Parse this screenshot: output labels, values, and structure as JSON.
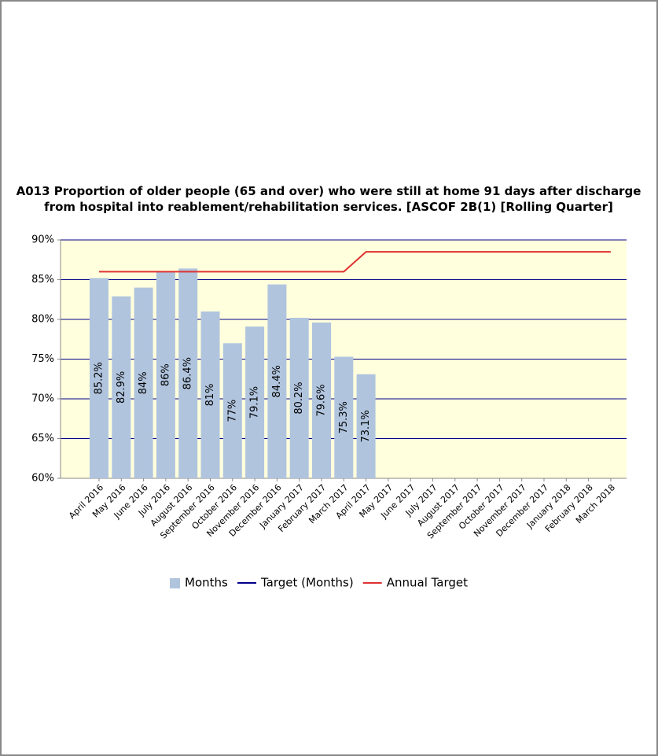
{
  "chart_data": {
    "type": "bar",
    "title": "A013 Proportion of older people (65 and over) who were still at home 91 days after discharge from hospital into reablement/rehabilitation services. [ASCOF 2B(1) [Rolling Quarter]",
    "categories": [
      "April 2016",
      "May 2016",
      "June 2016",
      "July 2016",
      "August 2016",
      "September 2016",
      "October 2016",
      "November 2016",
      "December 2016",
      "January 2017",
      "February 2017",
      "March 2017",
      "April 2017",
      "May 2017",
      "June 2017",
      "July 2017",
      "August 2017",
      "September 2017",
      "October 2017",
      "November 2017",
      "December 2017",
      "January 2018",
      "February 2018",
      "March 2018"
    ],
    "series": [
      {
        "name": "Months",
        "type": "bar",
        "color": "#b0c4de",
        "values": [
          85.2,
          82.9,
          84,
          86,
          86.4,
          81,
          77,
          79.1,
          84.4,
          80.2,
          79.6,
          75.3,
          73.1,
          null,
          null,
          null,
          null,
          null,
          null,
          null,
          null,
          null,
          null,
          null
        ],
        "value_labels": [
          "85.2%",
          "82.9%",
          "84%",
          "86%",
          "86.4%",
          "81%",
          "77%",
          "79.1%",
          "84.4%",
          "80.2%",
          "79.6%",
          "75.3%",
          "73.1%",
          null,
          null,
          null,
          null,
          null,
          null,
          null,
          null,
          null,
          null,
          null
        ]
      },
      {
        "name": "Target (Months)",
        "type": "line",
        "color": "#00008b",
        "values": [
          null,
          null,
          null,
          null,
          null,
          null,
          null,
          null,
          null,
          null,
          null,
          null,
          null,
          null,
          null,
          null,
          null,
          null,
          null,
          null,
          null,
          null,
          null,
          null
        ]
      },
      {
        "name": "Annual Target",
        "type": "line",
        "color": "#e03030",
        "values": [
          86,
          86,
          86,
          86,
          86,
          86,
          86,
          86,
          86,
          86,
          86,
          86,
          88.5,
          88.5,
          88.5,
          88.5,
          88.5,
          88.5,
          88.5,
          88.5,
          88.5,
          88.5,
          88.5,
          88.5
        ]
      }
    ],
    "ylim": [
      60,
      90
    ],
    "yticks": [
      {
        "value": 60,
        "label": "60%"
      },
      {
        "value": 65,
        "label": "65%"
      },
      {
        "value": 70,
        "label": "70%"
      },
      {
        "value": 75,
        "label": "75%"
      },
      {
        "value": 80,
        "label": "80%"
      },
      {
        "value": 85,
        "label": "85%"
      },
      {
        "value": 90,
        "label": "90%"
      }
    ],
    "grid": true,
    "grid_color": "#00008b",
    "plot_background": "#ffffdd",
    "legend": "bottom"
  }
}
